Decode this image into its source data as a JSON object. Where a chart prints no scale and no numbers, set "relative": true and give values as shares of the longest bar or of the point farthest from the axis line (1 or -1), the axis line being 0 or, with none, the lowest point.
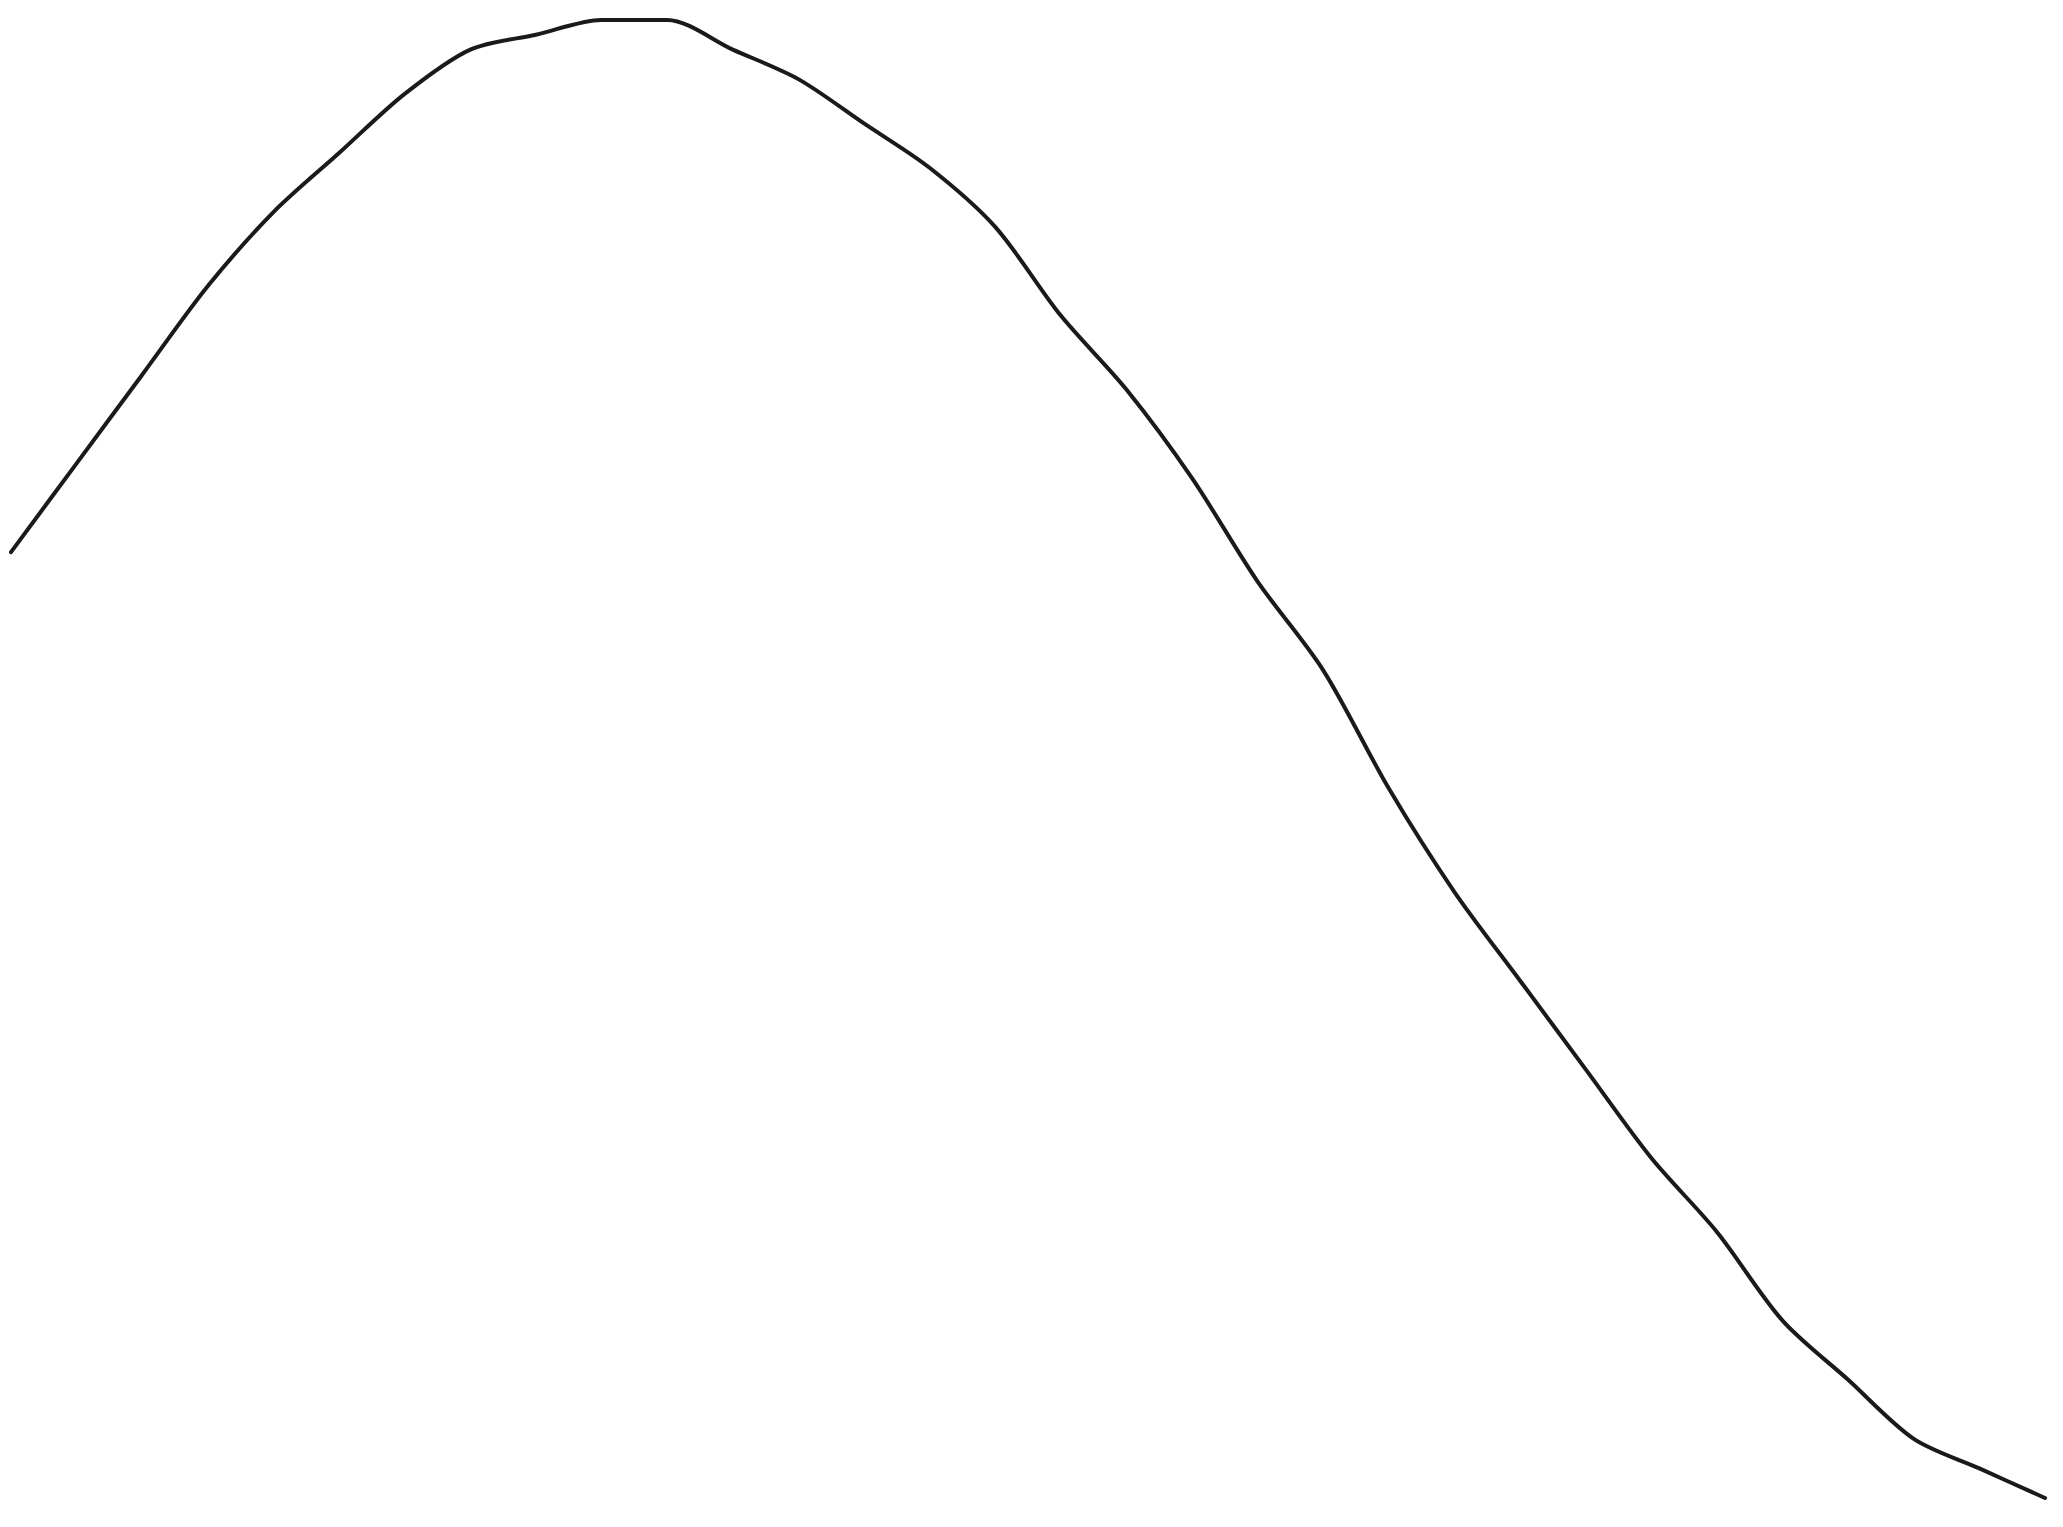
{
  "chart_data": {
    "type": "line",
    "relative": true,
    "marker": "none",
    "line_style": "solid",
    "categories": [
      null,
      null,
      null,
      null,
      null,
      null,
      null,
      null,
      null,
      null,
      null,
      null,
      null,
      null,
      null,
      null,
      null,
      null,
      null,
      null,
      null,
      null,
      null,
      null,
      null,
      null,
      null,
      null,
      null,
      null,
      null,
      null
    ],
    "series": [
      {
        "color": "#1a1a1a",
        "values": [
          0.64,
          0.7,
          0.76,
          0.82,
          0.87,
          0.91,
          0.95,
          0.98,
          0.99,
          1,
          1.0,
          0.98,
          0.96,
          0.93,
          0.9,
          0.86,
          0.8,
          0.75,
          0.69,
          0.62,
          0.56,
          0.48,
          0.41,
          0.35,
          0.29,
          0.23,
          0.18,
          0.12,
          0.08,
          0.04,
          0.02,
          0
        ]
      }
    ]
  }
}
